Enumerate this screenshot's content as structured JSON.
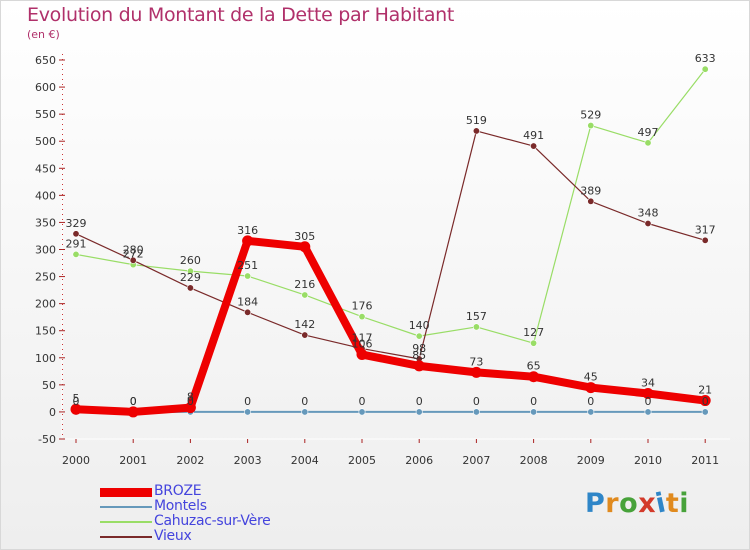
{
  "header": {
    "title": "Evolution du Montant de la Dette par Habitant",
    "unit": "(en €)"
  },
  "logo": {
    "text": "Proxiti",
    "letter_colors": [
      "#2f86c8",
      "#e08a1e",
      "#47a23a",
      "#d33a2a",
      "#2f86c8",
      "#e08a1e",
      "#47a23a"
    ]
  },
  "chart_data": {
    "type": "line",
    "title": "Evolution du Montant de la Dette par Habitant",
    "ylabel": "(en €)",
    "xlabel": "",
    "x": [
      "2000",
      "2001",
      "2002",
      "2003",
      "2004",
      "2005",
      "2006",
      "2007",
      "2008",
      "2009",
      "2010",
      "2011"
    ],
    "ylim": [
      -50,
      650
    ],
    "yticks": [
      -50,
      0,
      50,
      100,
      150,
      200,
      250,
      300,
      350,
      400,
      450,
      500,
      550,
      600,
      650
    ],
    "grid": false,
    "series": [
      {
        "name": "BROZE",
        "color": "#ee0000",
        "values": [
          5,
          0,
          8,
          316,
          305,
          106,
          85,
          73,
          65,
          45,
          34,
          21
        ],
        "labels": [
          "5",
          "0",
          "8",
          "316",
          "305",
          "106",
          "85",
          "73",
          "65",
          "45",
          "34",
          "21"
        ]
      },
      {
        "name": "Montels",
        "color": "#6699bb",
        "values": [
          0,
          0,
          0,
          0,
          0,
          0,
          0,
          0,
          0,
          0,
          0,
          0
        ],
        "labels": [
          "0",
          "0",
          "0",
          "0",
          "0",
          "0",
          "0",
          "0",
          "0",
          "0",
          "0",
          "0"
        ]
      },
      {
        "name": "Cahuzac-sur-Vère",
        "color": "#99dd66",
        "values": [
          291,
          272,
          260,
          251,
          216,
          176,
          140,
          157,
          127,
          529,
          497,
          633
        ],
        "labels": [
          "291",
          "272",
          "260",
          "251",
          "216",
          "176",
          "140",
          "157",
          "127",
          "529",
          "497",
          "633"
        ]
      },
      {
        "name": "Vieux",
        "color": "#7a2a2a",
        "values": [
          329,
          280,
          229,
          184,
          142,
          117,
          98,
          519,
          491,
          389,
          348,
          317
        ],
        "labels": [
          "329",
          "280",
          "229",
          "184",
          "142",
          "117",
          "98",
          "519",
          "491",
          "389",
          "348",
          "317"
        ]
      }
    ]
  }
}
